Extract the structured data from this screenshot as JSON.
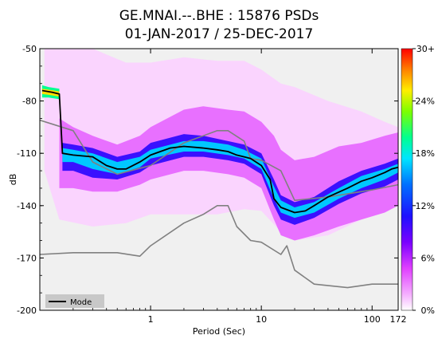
{
  "chart_data": {
    "type": "heatmap",
    "title_line1": "GE.MNAI.--.BHE : 15876 PSDs",
    "title_line2": "01-JAN-2017 / 25-DEC-2017",
    "xlabel": "Period (Sec)",
    "ylabel": "dB",
    "x_scale": "log",
    "xlim": [
      0.1,
      172
    ],
    "ylim": [
      -200,
      -50
    ],
    "x_ticks": [
      {
        "value": 1,
        "label": "1"
      },
      {
        "value": 10,
        "label": "10"
      },
      {
        "value": 100,
        "label": "100"
      },
      {
        "value": 172,
        "label": "172"
      }
    ],
    "y_ticks": [
      {
        "value": -50,
        "label": "-50"
      },
      {
        "value": -80,
        "label": "-80"
      },
      {
        "value": -110,
        "label": "-110"
      },
      {
        "value": -140,
        "label": "-140"
      },
      {
        "value": -170,
        "label": "-170"
      },
      {
        "value": -200,
        "label": "-200"
      }
    ],
    "colorbar": {
      "ticks": [
        {
          "value": 0,
          "label": "0%"
        },
        {
          "value": 6,
          "label": "6%"
        },
        {
          "value": 12,
          "label": "12%"
        },
        {
          "value": 18,
          "label": "18%"
        },
        {
          "value": 24,
          "label": "24%"
        },
        {
          "value": 30,
          "label": "30+"
        }
      ],
      "range": [
        0,
        30
      ]
    },
    "legend": {
      "label": "Mode",
      "position": "bottom-left"
    },
    "mode": {
      "name": "Mode",
      "x": [
        0.105,
        0.13,
        0.15,
        0.16,
        0.2,
        0.3,
        0.4,
        0.5,
        0.6,
        0.8,
        1.0,
        1.5,
        2.0,
        3.0,
        4.0,
        5.0,
        6.0,
        7.0,
        8.0,
        10.0,
        12.0,
        13.0,
        15.0,
        20.0,
        25.0,
        30.0,
        40.0,
        60.0,
        80.0,
        100.0,
        130.0,
        150.0,
        172.0
      ],
      "y": [
        -74,
        -75,
        -76,
        -110,
        -111,
        -112,
        -117,
        -119,
        -119,
        -115,
        -111,
        -107,
        -106,
        -107,
        -108,
        -109,
        -111,
        -112,
        -113,
        -117,
        -125,
        -136,
        -141,
        -144,
        -143,
        -140,
        -135,
        -130,
        -126,
        -124,
        -121,
        -119,
        -118
      ]
    },
    "nhnm": {
      "x": [
        0.1,
        0.2,
        0.3,
        0.5,
        1.0,
        2.0,
        4.0,
        5.0,
        7.0,
        8.0,
        10.0,
        15.0,
        20.0,
        40.0,
        100.0,
        172.0
      ],
      "y": [
        -91,
        -97,
        -115,
        -122,
        -117,
        -104,
        -97,
        -97,
        -103,
        -113,
        -114,
        -120,
        -137,
        -135,
        -131,
        -128
      ]
    },
    "nlnm": {
      "x": [
        0.1,
        0.2,
        0.5,
        0.8,
        1.0,
        2.0,
        3.0,
        4.0,
        5.0,
        6.0,
        8.0,
        10.0,
        15.0,
        17.0,
        20.0,
        30.0,
        60.0,
        100.0,
        172.0
      ],
      "y": [
        -168,
        -167,
        -167,
        -169,
        -163,
        -150,
        -145,
        -140,
        -140,
        -152,
        -160,
        -161,
        -168,
        -163,
        -177,
        -185,
        -187,
        -185,
        -185
      ]
    },
    "density_bands": [
      {
        "level": "very_low",
        "x": [
          0.11,
          0.15,
          0.3,
          0.6,
          1.0,
          2.0,
          4.0,
          7.0,
          10.0,
          15.0,
          20.0,
          40.0,
          80.0,
          130.0,
          172.0
        ],
        "upper": [
          -50,
          -50,
          -50,
          -58,
          -58,
          -55,
          -57,
          -57,
          -62,
          -70,
          -72,
          -80,
          -86,
          -92,
          -95
        ],
        "lower": [
          -120,
          -148,
          -152,
          -150,
          -145,
          -145,
          -145,
          -142,
          -143,
          -155,
          -160,
          -157,
          -148,
          -144,
          -140
        ]
      },
      {
        "level": "low",
        "x": [
          0.15,
          0.2,
          0.3,
          0.5,
          0.8,
          1.0,
          2.0,
          3.0,
          5.0,
          7.0,
          10.0,
          13.0,
          15.0,
          20.0,
          30.0,
          50.0,
          80.0,
          130.0,
          172.0
        ],
        "upper": [
          -90,
          -95,
          -100,
          -105,
          -100,
          -95,
          -85,
          -83,
          -85,
          -86,
          -92,
          -100,
          -108,
          -114,
          -112,
          -106,
          -104,
          -100,
          -98
        ],
        "lower": [
          -130,
          -130,
          -132,
          -132,
          -128,
          -125,
          -120,
          -120,
          -122,
          -124,
          -130,
          -148,
          -157,
          -160,
          -157,
          -152,
          -148,
          -144,
          -140
        ]
      },
      {
        "level": "mid",
        "x": [
          0.16,
          0.2,
          0.3,
          0.5,
          0.8,
          1.0,
          2.0,
          3.0,
          5.0,
          7.0,
          10.0,
          13.0,
          15.0,
          20.0,
          30.0,
          50.0,
          80.0,
          130.0,
          172.0
        ],
        "upper": [
          -104,
          -105,
          -107,
          -112,
          -109,
          -104,
          -99,
          -100,
          -103,
          -105,
          -110,
          -125,
          -134,
          -138,
          -135,
          -126,
          -120,
          -116,
          -113
        ],
        "lower": [
          -120,
          -120,
          -124,
          -125,
          -121,
          -117,
          -112,
          -112,
          -114,
          -116,
          -122,
          -140,
          -148,
          -151,
          -147,
          -139,
          -133,
          -129,
          -125
        ]
      },
      {
        "level": "high",
        "x": [
          0.16,
          0.2,
          0.3,
          0.5,
          0.8,
          1.0,
          2.0,
          3.0,
          5.0,
          7.0,
          10.0,
          13.0,
          15.0,
          20.0,
          30.0,
          50.0,
          80.0,
          130.0,
          172.0
        ],
        "upper": [
          -107,
          -108,
          -110,
          -115,
          -112,
          -108,
          -103,
          -103,
          -105,
          -108,
          -113,
          -129,
          -137,
          -141,
          -138,
          -130,
          -123,
          -119,
          -116
        ],
        "lower": [
          -115,
          -115,
          -119,
          -122,
          -118,
          -113,
          -109,
          -109,
          -111,
          -113,
          -119,
          -136,
          -144,
          -147,
          -144,
          -136,
          -130,
          -125,
          -121
        ]
      },
      {
        "level": "peak",
        "x": [
          0.105,
          0.12,
          0.15
        ],
        "upper": [
          -71,
          -72,
          -73
        ],
        "lower": [
          -78,
          -78,
          -79
        ]
      }
    ],
    "grid": false
  }
}
